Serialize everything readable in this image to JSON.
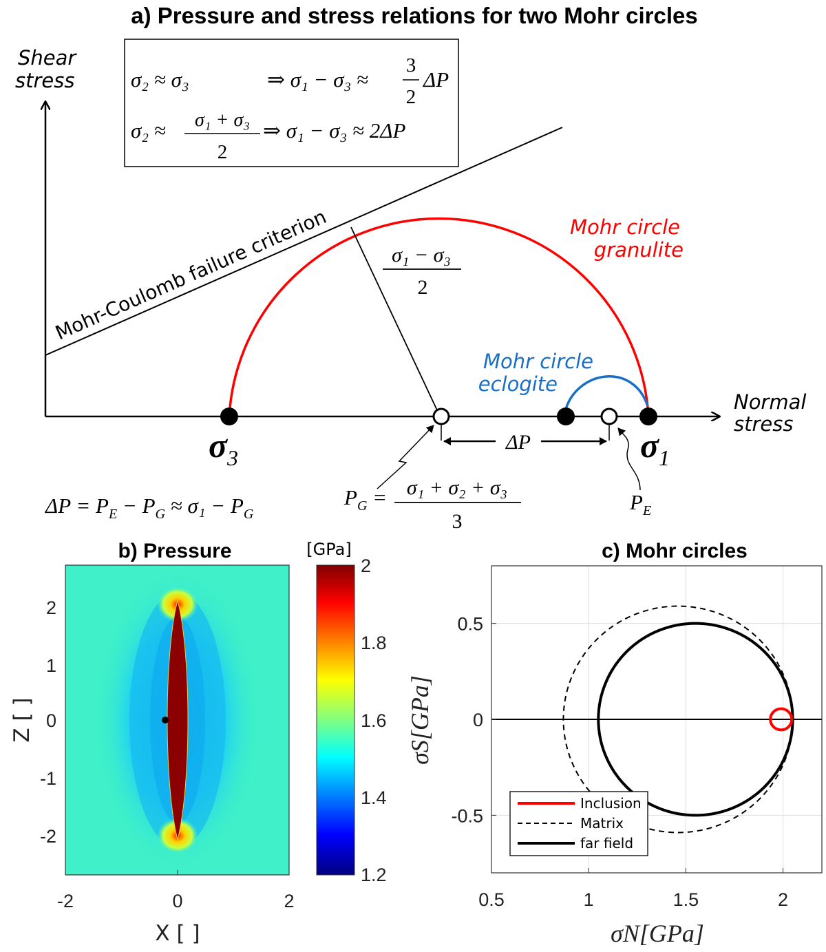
{
  "panel_a": {
    "title": "a) Pressure and stress relations for two Mohr circles",
    "y_axis_label": [
      "Shear",
      "stress"
    ],
    "x_axis_label": [
      "Normal",
      "stress"
    ],
    "mc_label": "Mohr-Coulomb failure criterion",
    "granulite_label": [
      "Mohr circle",
      "granulite"
    ],
    "eclogite_label": [
      "Mohr circle",
      "eclogite"
    ],
    "granulite_color": "#ff0000",
    "eclogite_color": "#1a6fc4",
    "sigma_symbol": "σ",
    "sigma3_sub": "3",
    "sigma1_sub": "1",
    "box": {
      "row1_left": "σ₂ ≈ σ₃",
      "row1_right": "⇒ σ₁ − σ₃ ≈",
      "row1_frac_num": "3",
      "row1_frac_den": "2",
      "row1_tail": "ΔP",
      "row2_left": "σ₂ ≈",
      "row2_frac_num": "σ₁ + σ₃",
      "row2_frac_den": "2",
      "row2_right": "⇒ σ₁ − σ₃ ≈ 2ΔP"
    },
    "radius_frac_num": "σ₁ − σ₃",
    "radius_frac_den": "2",
    "delta_p": "ΔP",
    "delta_p_eq": "ΔP = P",
    "delta_p_eq_sub1": "E",
    "delta_p_eq_mid": " − P",
    "delta_p_eq_sub2": "G",
    "delta_p_eq_tail": " ≈ σ₁ − P",
    "delta_p_eq_sub3": "G",
    "pg_label": "P",
    "pg_sub": "G",
    "pg_eq": " =",
    "pg_frac_num": "σ₁ + σ₂ + σ₃",
    "pg_frac_den": "3",
    "pe_label": "P",
    "pe_sub": "E"
  },
  "panel_b": {
    "title": "b) Pressure",
    "colorbar_unit": "[GPa]",
    "colorbar_ticks": [
      "2",
      "1.8",
      "1.6",
      "1.4",
      "1.2"
    ],
    "x_ticks": [
      "-2",
      "0",
      "2"
    ],
    "y_ticks": [
      "2",
      "1",
      "0",
      "-1",
      "-2"
    ],
    "xlabel": "X [ ]",
    "ylabel": "Z [ ]",
    "background_color": "#3ff0c8",
    "inclusion_color": "#8b0000"
  },
  "chart_data": {
    "type": "line",
    "title": "c) Mohr circles",
    "xlabel": "σN[GPa]",
    "ylabel": "σS[GPa]",
    "xlim": [
      0.5,
      2.2
    ],
    "ylim": [
      -0.8,
      0.8
    ],
    "x_ticks": [
      "0.5",
      "1",
      "1.5",
      "2"
    ],
    "y_ticks": [
      "0.5",
      "0",
      "-0.5"
    ],
    "grid": true,
    "legend_position": "bottom-left",
    "series": [
      {
        "name": "Inclusion",
        "style": "solid",
        "color": "#ff0000",
        "center": 1.99,
        "radius": 0.055
      },
      {
        "name": "Matrix",
        "style": "dashed",
        "color": "#000000",
        "center": 1.46,
        "radius": 0.59
      },
      {
        "name": "far field",
        "style": "solid",
        "color": "#000000",
        "center": 1.55,
        "radius": 0.5
      }
    ]
  }
}
